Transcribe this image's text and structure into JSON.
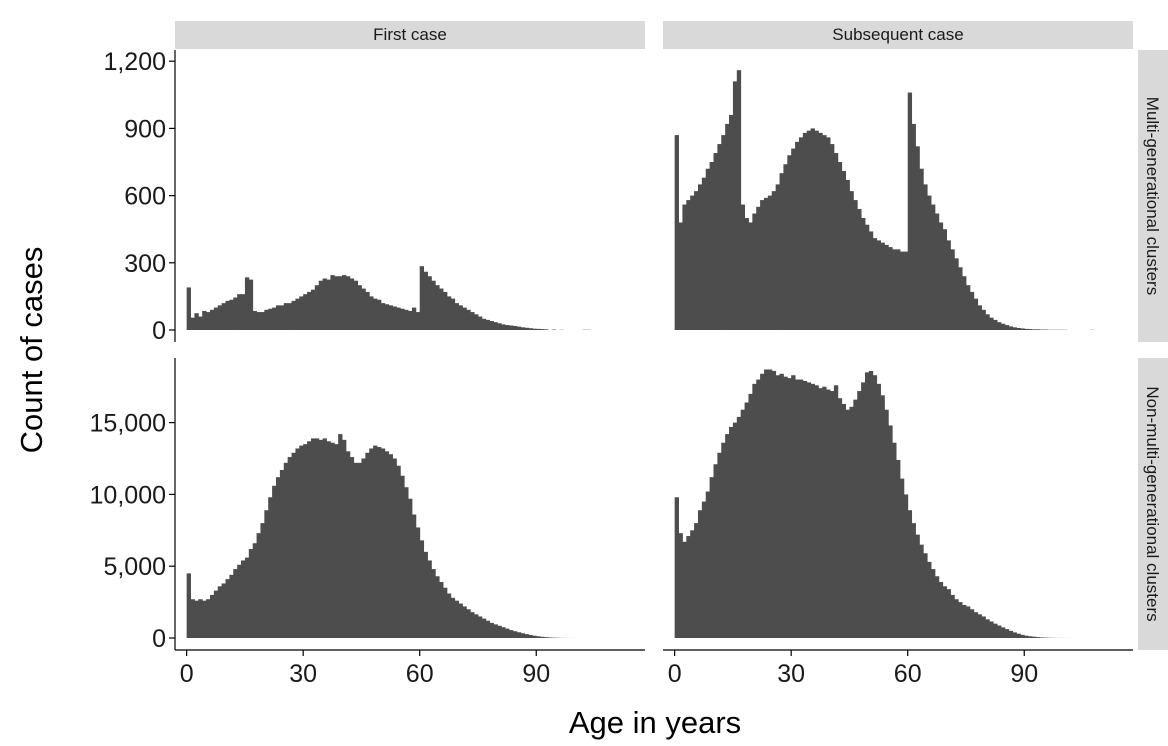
{
  "chart_data": {
    "type": "bar",
    "subtype": "faceted-histogram",
    "xlabel": "Age in years",
    "ylabel": "Count of cases",
    "bin_width_years": 1,
    "x_ticks": [
      0,
      30,
      60,
      90
    ],
    "x_tick_labels": [
      "0",
      "30",
      "60",
      "90"
    ],
    "xlim": [
      -3,
      118
    ],
    "grid": false,
    "columns": [
      "First case",
      "Subsequent case"
    ],
    "rows": [
      {
        "label": "Multi-generational clusters",
        "ylim": [
          0,
          1250
        ],
        "y_ticks": [
          0,
          300,
          600,
          900,
          1200
        ],
        "y_tick_labels": [
          "0",
          "300",
          "600",
          "900",
          "1,200"
        ]
      },
      {
        "label": "Non-multi-generational clusters",
        "ylim": [
          0,
          19500
        ],
        "y_ticks": [
          0,
          5000,
          10000,
          15000
        ],
        "y_tick_labels": [
          "0",
          "5,000",
          "10,000",
          "15,000"
        ]
      }
    ],
    "panels": [
      {
        "column": "First case",
        "row": "Multi-generational clusters",
        "start_age": 0,
        "values": [
          190,
          55,
          75,
          60,
          85,
          80,
          90,
          100,
          110,
          120,
          130,
          135,
          145,
          160,
          160,
          235,
          225,
          85,
          80,
          80,
          90,
          95,
          100,
          110,
          110,
          120,
          120,
          130,
          140,
          150,
          160,
          170,
          180,
          200,
          220,
          230,
          225,
          245,
          240,
          240,
          245,
          240,
          230,
          220,
          200,
          185,
          170,
          150,
          140,
          135,
          120,
          115,
          110,
          105,
          100,
          95,
          90,
          85,
          100,
          80,
          285,
          260,
          240,
          220,
          200,
          185,
          170,
          150,
          140,
          120,
          110,
          100,
          90,
          80,
          70,
          60,
          50,
          45,
          40,
          35,
          30,
          25,
          22,
          20,
          18,
          15,
          12,
          10,
          8,
          6,
          5,
          4,
          3,
          0,
          2,
          0,
          1,
          0,
          0,
          0,
          0,
          0,
          1,
          1
        ]
      },
      {
        "column": "Subsequent case",
        "row": "Multi-generational clusters",
        "start_age": 0,
        "values": [
          870,
          480,
          560,
          580,
          600,
          620,
          650,
          680,
          720,
          750,
          790,
          830,
          870,
          920,
          960,
          1110,
          1160,
          560,
          500,
          480,
          520,
          550,
          580,
          590,
          600,
          620,
          650,
          700,
          740,
          780,
          810,
          840,
          860,
          880,
          890,
          900,
          890,
          880,
          870,
          860,
          830,
          790,
          750,
          710,
          670,
          620,
          580,
          540,
          500,
          470,
          440,
          410,
          400,
          390,
          380,
          370,
          360,
          360,
          350,
          350,
          1060,
          920,
          820,
          720,
          650,
          600,
          560,
          520,
          480,
          450,
          400,
          360,
          320,
          280,
          240,
          200,
          170,
          140,
          110,
          90,
          70,
          55,
          45,
          35,
          28,
          22,
          16,
          12,
          9,
          7,
          5,
          4,
          3,
          3,
          2,
          2,
          1,
          1,
          1,
          1,
          1,
          0,
          0,
          0,
          0,
          0,
          0,
          1
        ]
      },
      {
        "column": "First case",
        "row": "Non-multi-generational clusters",
        "start_age": 0,
        "values": [
          4500,
          2700,
          2600,
          2700,
          2600,
          2700,
          3000,
          3300,
          3600,
          3800,
          4100,
          4400,
          4800,
          5100,
          5400,
          5600,
          6200,
          6600,
          7300,
          8000,
          8900,
          9800,
          10600,
          11200,
          11700,
          12200,
          12600,
          12900,
          13200,
          13400,
          13500,
          13700,
          13900,
          13900,
          13800,
          13900,
          13700,
          13600,
          13500,
          14200,
          13800,
          13000,
          12600,
          12200,
          12200,
          12500,
          12900,
          13200,
          13400,
          13300,
          13200,
          13000,
          12800,
          12500,
          12000,
          11300,
          10500,
          9700,
          8600,
          7700,
          6800,
          6000,
          5400,
          4800,
          4300,
          3900,
          3500,
          3100,
          2800,
          2600,
          2400,
          2200,
          2000,
          1800,
          1650,
          1500,
          1350,
          1200,
          1050,
          950,
          850,
          750,
          650,
          550,
          470,
          400,
          330,
          270,
          210,
          160,
          120,
          85,
          60,
          40,
          25,
          15,
          10,
          5,
          3,
          2,
          2,
          1,
          1,
          1,
          1
        ]
      },
      {
        "column": "Subsequent case",
        "row": "Non-multi-generational clusters",
        "start_age": 0,
        "values": [
          9800,
          7300,
          6700,
          7100,
          7500,
          8000,
          8900,
          9500,
          10200,
          11200,
          12100,
          12900,
          13600,
          14200,
          14700,
          15000,
          15400,
          15900,
          16400,
          17000,
          17700,
          18000,
          18400,
          18700,
          18700,
          18600,
          18300,
          18400,
          18200,
          18100,
          18300,
          18000,
          18000,
          17900,
          17800,
          17700,
          17600,
          17400,
          17500,
          17300,
          17200,
          17600,
          16700,
          16300,
          15900,
          16100,
          16600,
          17200,
          17800,
          18500,
          18600,
          18300,
          17700,
          16900,
          15900,
          14800,
          13600,
          12400,
          11100,
          10000,
          8900,
          8000,
          7200,
          6500,
          5900,
          5300,
          4800,
          4300,
          3900,
          3600,
          3400,
          3000,
          2700,
          2500,
          2300,
          2200,
          2000,
          1800,
          1650,
          1500,
          1300,
          1150,
          1000,
          870,
          740,
          620,
          500,
          390,
          300,
          220,
          160,
          120,
          90,
          60,
          40,
          25,
          15,
          10,
          6,
          4,
          3,
          2,
          1,
          1,
          1,
          0,
          0,
          0,
          0,
          0,
          1
        ]
      }
    ]
  }
}
